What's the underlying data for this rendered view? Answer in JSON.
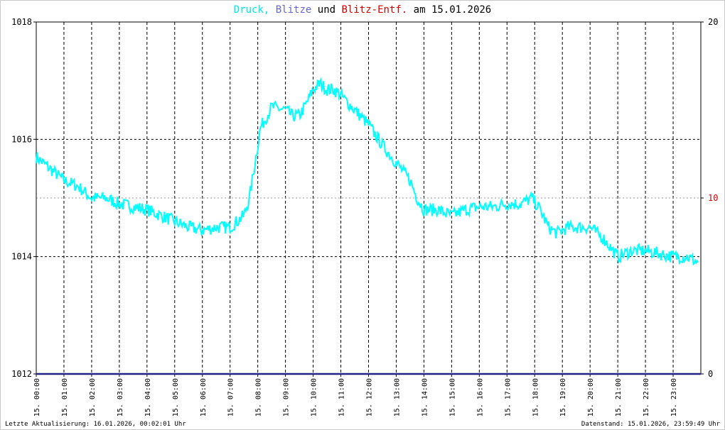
{
  "title": {
    "druck": "Druck,",
    "blitze": "Blitze",
    "und": "und",
    "entf": "Blitz-Entf.",
    "am": "am",
    "date": "15.01.2026"
  },
  "footer": {
    "left": "Letzte Aktualisierung: 16.01.2026, 00:02:01 Uhr",
    "right": "Datenstand: 15.01.2026, 23:59:49 Uhr"
  },
  "colors": {
    "druck": "#00ffff",
    "blitze": "#6666cc",
    "entf": "#cc0000",
    "blitze_line": "#222288",
    "text": "#000000"
  },
  "chart_data": {
    "type": "line",
    "x_tick_labels": [
      "15. 00:00",
      "15. 01:00",
      "15. 02:00",
      "15. 03:00",
      "15. 04:00",
      "15. 05:00",
      "15. 06:00",
      "15. 07:00",
      "15. 08:00",
      "15. 09:00",
      "15. 10:00",
      "15. 11:00",
      "15. 12:00",
      "15. 13:00",
      "15. 14:00",
      "15. 15:00",
      "15. 16:00",
      "15. 17:00",
      "15. 18:00",
      "15. 19:00",
      "15. 20:00",
      "15. 21:00",
      "15. 22:00",
      "15. 23:00"
    ],
    "y_left": {
      "min": 1012,
      "max": 1018,
      "ticks": [
        1012,
        1014,
        1016,
        1018
      ]
    },
    "y_right": {
      "min": 0,
      "max": 20,
      "ticks": [
        0,
        10,
        20
      ],
      "tick_colors": [
        "#000000",
        "#cc0000",
        "#000000"
      ]
    },
    "grid": true,
    "series": [
      {
        "name": "Druck",
        "axis": "left",
        "color": "#00ffff",
        "points": [
          [
            0.0,
            1015.7
          ],
          [
            0.5,
            1015.5
          ],
          [
            1.0,
            1015.3
          ],
          [
            1.5,
            1015.2
          ],
          [
            2.0,
            1015.0
          ],
          [
            2.5,
            1015.0
          ],
          [
            3.0,
            1014.9
          ],
          [
            3.5,
            1014.85
          ],
          [
            4.0,
            1014.8
          ],
          [
            4.5,
            1014.7
          ],
          [
            5.0,
            1014.6
          ],
          [
            5.5,
            1014.5
          ],
          [
            6.0,
            1014.45
          ],
          [
            6.5,
            1014.5
          ],
          [
            7.0,
            1014.5
          ],
          [
            7.25,
            1014.6
          ],
          [
            7.5,
            1014.7
          ],
          [
            7.7,
            1015.0
          ],
          [
            7.9,
            1015.6
          ],
          [
            8.1,
            1016.2
          ],
          [
            8.5,
            1016.55
          ],
          [
            9.0,
            1016.5
          ],
          [
            9.25,
            1016.4
          ],
          [
            9.5,
            1016.4
          ],
          [
            9.75,
            1016.6
          ],
          [
            10.0,
            1016.85
          ],
          [
            10.25,
            1016.95
          ],
          [
            10.5,
            1016.85
          ],
          [
            10.75,
            1016.85
          ],
          [
            11.0,
            1016.75
          ],
          [
            11.5,
            1016.5
          ],
          [
            12.0,
            1016.25
          ],
          [
            12.5,
            1015.9
          ],
          [
            13.0,
            1015.6
          ],
          [
            13.5,
            1015.3
          ],
          [
            13.75,
            1015.0
          ],
          [
            14.0,
            1014.8
          ],
          [
            14.5,
            1014.8
          ],
          [
            15.0,
            1014.7
          ],
          [
            15.5,
            1014.8
          ],
          [
            16.0,
            1014.85
          ],
          [
            16.5,
            1014.85
          ],
          [
            17.0,
            1014.9
          ],
          [
            17.5,
            1014.9
          ],
          [
            17.9,
            1015.0
          ],
          [
            18.2,
            1014.8
          ],
          [
            18.5,
            1014.5
          ],
          [
            18.8,
            1014.4
          ],
          [
            19.2,
            1014.5
          ],
          [
            19.6,
            1014.5
          ],
          [
            20.0,
            1014.5
          ],
          [
            20.5,
            1014.3
          ],
          [
            21.0,
            1014.0
          ],
          [
            21.5,
            1014.1
          ],
          [
            22.0,
            1014.1
          ],
          [
            22.5,
            1014.05
          ],
          [
            23.0,
            1014.0
          ],
          [
            23.5,
            1014.0
          ],
          [
            23.9,
            1013.9
          ]
        ]
      },
      {
        "name": "Blitze",
        "axis": "right",
        "color": "#222288",
        "points": [
          [
            0.0,
            0
          ],
          [
            24.0,
            0
          ]
        ]
      }
    ]
  }
}
